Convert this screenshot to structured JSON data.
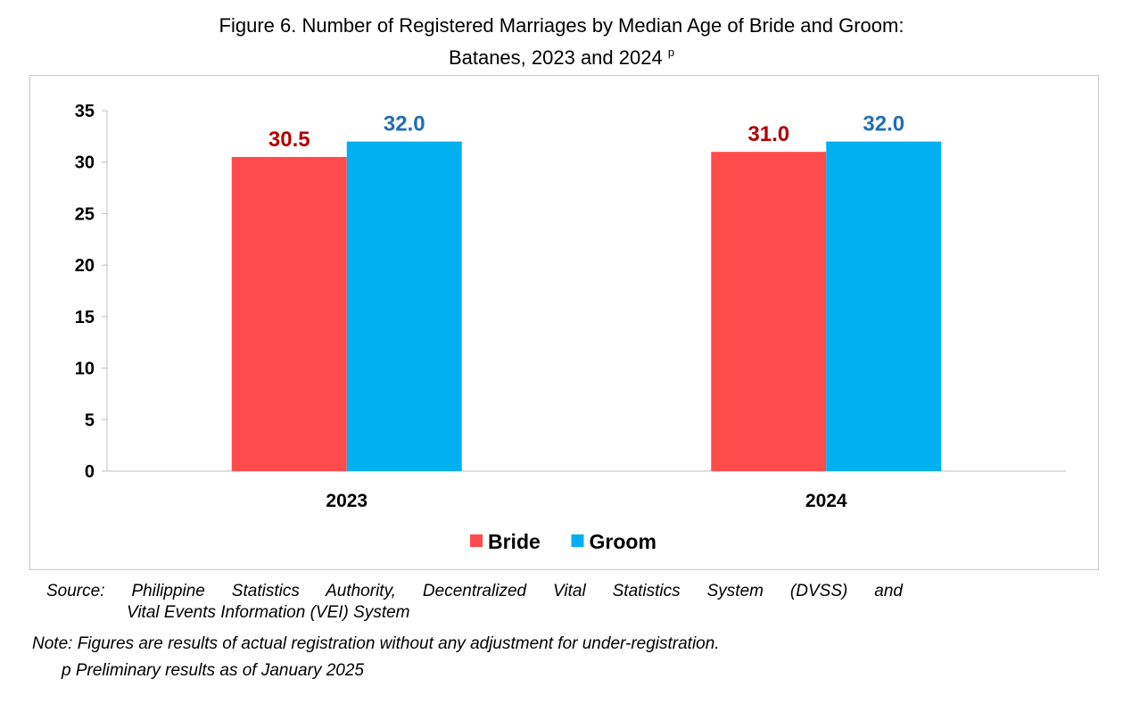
{
  "header": {
    "title_line1": "Figure 6. Number of Registered Marriages by Median Age of Bride and Groom:",
    "title_line2": "Batanes, 2023 and 2024",
    "title_sup": "p"
  },
  "chart_data": {
    "type": "bar",
    "title": "Figure 6. Number of Registered Marriages by Median Age of Bride and Groom: Batanes, 2023 and 2024 p",
    "categories": [
      "2023",
      "2024"
    ],
    "series": [
      {
        "name": "Bride",
        "values": [
          30.5,
          31.0
        ],
        "labels": [
          "30.5",
          "31.0"
        ],
        "color": "#ff4b4b",
        "label_color": "#b30000"
      },
      {
        "name": "Groom",
        "values": [
          32.0,
          32.0
        ],
        "labels": [
          "32.0",
          "32.0"
        ],
        "color": "#00b0f0",
        "label_color": "#1f6fb8"
      }
    ],
    "ylim": [
      0,
      35
    ],
    "yticks": [
      0,
      5,
      10,
      15,
      20,
      25,
      30,
      35
    ],
    "grid": false,
    "legend": "bottom-center",
    "xlabel": "",
    "ylabel": ""
  },
  "footer": {
    "source_line1": "Source: Philippine Statistics Authority, Decentralized Vital Statistics System (DVSS) and",
    "source_line2": "Vital Events Information (VEI) System",
    "note_line1": "Note: Figures are results of actual registration without any adjustment for under-registration.",
    "note_line2": "p Preliminary results as of January 2025"
  }
}
